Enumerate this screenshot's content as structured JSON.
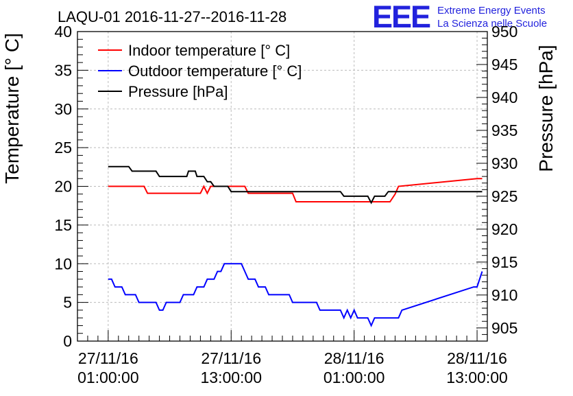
{
  "title": "LAQU-01 2016-11-27--2016-11-28",
  "logo": {
    "letters": "EEE",
    "line1": "Extreme Energy Events",
    "line2": "La Scienza nelle Scuole"
  },
  "colors": {
    "indoor": "#ff0000",
    "outdoor": "#0000ff",
    "pressure": "#000000",
    "logo": "#0000ff"
  },
  "chart_data": {
    "type": "line",
    "title": "LAQU-01 2016-11-27--2016-11-28",
    "xlabel": "",
    "ylabel": "Temperature [° C]",
    "y2label": "Pressure [hPa]",
    "xlim": [
      "2016-11-26 22:00",
      "2016-11-28 14:00"
    ],
    "ylim": [
      0,
      40
    ],
    "y2lim": [
      903,
      950
    ],
    "grid": true,
    "legend_position": "top-left",
    "x_ticks": [
      {
        "label_line1": "27/11/16",
        "label_line2": "01:00:00",
        "value": "2016-11-27 01:00"
      },
      {
        "label_line1": "27/11/16",
        "label_line2": "13:00:00",
        "value": "2016-11-27 13:00"
      },
      {
        "label_line1": "28/11/16",
        "label_line2": "01:00:00",
        "value": "2016-11-28 01:00"
      },
      {
        "label_line1": "28/11/16",
        "label_line2": "13:00:00",
        "value": "2016-11-28 13:00"
      }
    ],
    "y_ticks": [
      0,
      5,
      10,
      15,
      20,
      25,
      30,
      35,
      40
    ],
    "y2_ticks": [
      905,
      910,
      915,
      920,
      925,
      930,
      935,
      940,
      945,
      950
    ],
    "series": [
      {
        "name": "Indoor temperature [° C]",
        "axis": "left",
        "color": "#ff0000",
        "points": [
          [
            "2016-11-27 01:00",
            20
          ],
          [
            "2016-11-27 04:30",
            20
          ],
          [
            "2016-11-27 04:50",
            19.1
          ],
          [
            "2016-11-27 10:00",
            19.1
          ],
          [
            "2016-11-27 10:20",
            20
          ],
          [
            "2016-11-27 10:40",
            19.1
          ],
          [
            "2016-11-27 11:00",
            20
          ],
          [
            "2016-11-27 14:20",
            20
          ],
          [
            "2016-11-27 14:40",
            19.1
          ],
          [
            "2016-11-27 19:00",
            19.1
          ],
          [
            "2016-11-27 19:20",
            18
          ],
          [
            "2016-11-28 04:30",
            18
          ],
          [
            "2016-11-28 05:00",
            19
          ],
          [
            "2016-11-28 05:20",
            20
          ],
          [
            "2016-11-28 13:00",
            21
          ],
          [
            "2016-11-28 13:30",
            21
          ]
        ]
      },
      {
        "name": "Outdoor temperature [° C]",
        "axis": "left",
        "color": "#0000ff",
        "points": [
          [
            "2016-11-27 01:00",
            8
          ],
          [
            "2016-11-27 01:20",
            8
          ],
          [
            "2016-11-27 01:40",
            7
          ],
          [
            "2016-11-27 02:20",
            7
          ],
          [
            "2016-11-27 02:40",
            6
          ],
          [
            "2016-11-27 03:40",
            6
          ],
          [
            "2016-11-27 04:00",
            5
          ],
          [
            "2016-11-27 05:40",
            5
          ],
          [
            "2016-11-27 06:00",
            4
          ],
          [
            "2016-11-27 06:20",
            4
          ],
          [
            "2016-11-27 06:40",
            5
          ],
          [
            "2016-11-27 08:00",
            5
          ],
          [
            "2016-11-27 08:20",
            6
          ],
          [
            "2016-11-27 09:20",
            6
          ],
          [
            "2016-11-27 09:40",
            7
          ],
          [
            "2016-11-27 10:20",
            7
          ],
          [
            "2016-11-27 10:40",
            8
          ],
          [
            "2016-11-27 11:20",
            8
          ],
          [
            "2016-11-27 11:40",
            9
          ],
          [
            "2016-11-27 12:00",
            9
          ],
          [
            "2016-11-27 12:20",
            10
          ],
          [
            "2016-11-27 14:00",
            10
          ],
          [
            "2016-11-27 14:20",
            9
          ],
          [
            "2016-11-27 14:40",
            8
          ],
          [
            "2016-11-27 15:20",
            8
          ],
          [
            "2016-11-27 15:40",
            7
          ],
          [
            "2016-11-27 16:20",
            7
          ],
          [
            "2016-11-27 16:40",
            6
          ],
          [
            "2016-11-27 18:40",
            6
          ],
          [
            "2016-11-27 19:00",
            5
          ],
          [
            "2016-11-27 21:20",
            5
          ],
          [
            "2016-11-27 21:40",
            4
          ],
          [
            "2016-11-27 23:40",
            4
          ],
          [
            "2016-11-28 00:00",
            3
          ],
          [
            "2016-11-28 00:20",
            4
          ],
          [
            "2016-11-28 00:40",
            3
          ],
          [
            "2016-11-28 01:00",
            4
          ],
          [
            "2016-11-28 01:20",
            3
          ],
          [
            "2016-11-28 02:20",
            3
          ],
          [
            "2016-11-28 02:40",
            2
          ],
          [
            "2016-11-28 03:00",
            3
          ],
          [
            "2016-11-28 05:20",
            3
          ],
          [
            "2016-11-28 05:40",
            4
          ],
          [
            "2016-11-28 12:40",
            7
          ],
          [
            "2016-11-28 13:00",
            7
          ],
          [
            "2016-11-28 13:30",
            9
          ]
        ]
      },
      {
        "name": "Pressure [hPa]",
        "axis": "right",
        "color": "#000000",
        "points": [
          [
            "2016-11-27 01:00",
            929.5
          ],
          [
            "2016-11-27 03:00",
            929.5
          ],
          [
            "2016-11-27 03:20",
            928.8
          ],
          [
            "2016-11-27 05:40",
            928.8
          ],
          [
            "2016-11-27 06:00",
            928
          ],
          [
            "2016-11-27 08:40",
            928
          ],
          [
            "2016-11-27 08:50",
            928.8
          ],
          [
            "2016-11-27 09:30",
            928.8
          ],
          [
            "2016-11-27 09:40",
            928
          ],
          [
            "2016-11-27 10:20",
            928
          ],
          [
            "2016-11-27 10:40",
            927.2
          ],
          [
            "2016-11-27 11:00",
            927.2
          ],
          [
            "2016-11-27 11:20",
            926.5
          ],
          [
            "2016-11-27 12:40",
            926.5
          ],
          [
            "2016-11-27 13:00",
            925.7
          ],
          [
            "2016-11-27 23:40",
            925.7
          ],
          [
            "2016-11-28 00:00",
            925
          ],
          [
            "2016-11-28 02:20",
            925
          ],
          [
            "2016-11-28 02:40",
            924
          ],
          [
            "2016-11-28 03:00",
            925
          ],
          [
            "2016-11-28 04:00",
            925
          ],
          [
            "2016-11-28 04:20",
            925.7
          ],
          [
            "2016-11-28 13:30",
            925.7
          ]
        ]
      }
    ]
  }
}
